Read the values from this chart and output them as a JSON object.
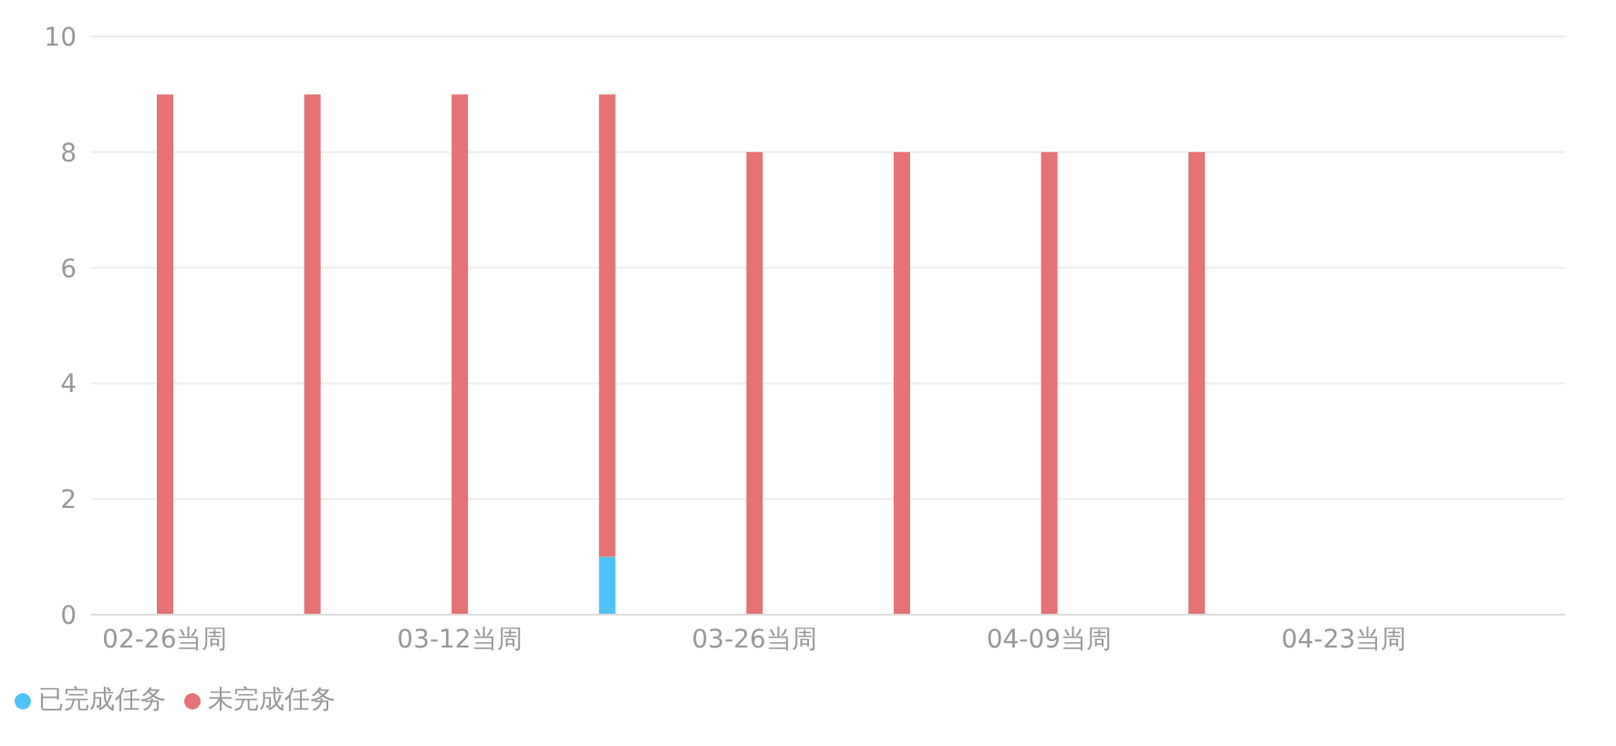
{
  "chart_data": {
    "type": "bar",
    "stacked": true,
    "categories": [
      "02-26当周",
      null,
      "03-12当周",
      null,
      "03-26当周",
      null,
      "04-09当周",
      null,
      "04-23当周",
      null
    ],
    "series": [
      {
        "name": "已完成任务",
        "color": "#4fc3f7",
        "values": [
          0,
          0,
          0,
          1,
          0,
          0,
          0,
          0,
          null,
          null
        ]
      },
      {
        "name": "未完成任务",
        "color": "#e57373",
        "values": [
          9,
          9,
          9,
          8,
          8,
          8,
          8,
          8,
          null,
          null
        ]
      }
    ],
    "ylim": [
      0,
      10
    ],
    "yticks": [
      0,
      2,
      4,
      6,
      8,
      10
    ],
    "grid": "y",
    "legend": "bottom left"
  }
}
